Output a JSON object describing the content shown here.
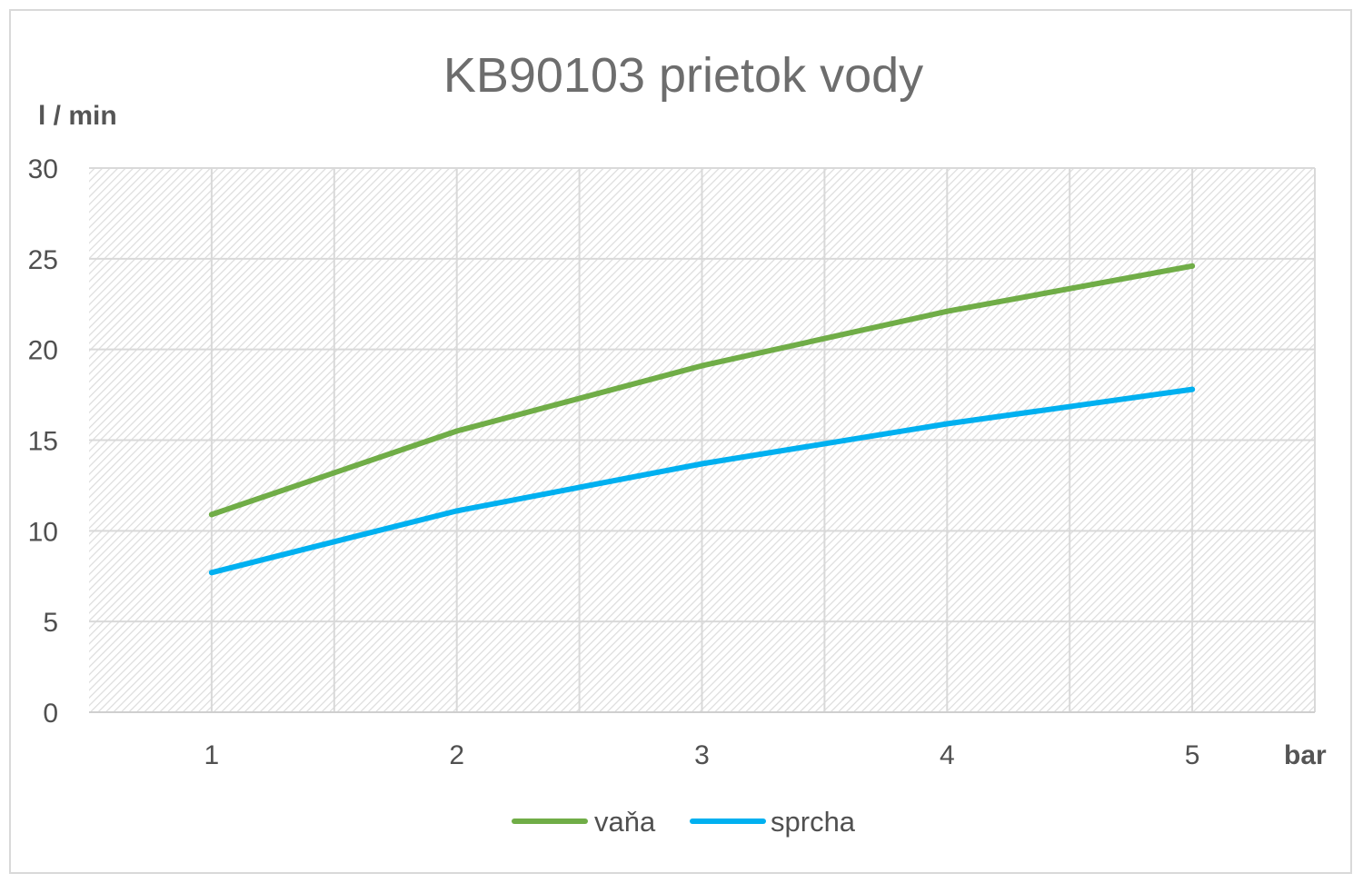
{
  "chart_data": {
    "type": "line",
    "title": "KB90103 prietok vody",
    "ylabel": "l / min",
    "xlabel": "bar",
    "categories": [
      "1",
      "2",
      "3",
      "4",
      "5"
    ],
    "ylim": [
      0,
      30
    ],
    "yticks": [
      "0",
      "5",
      "10",
      "15",
      "20",
      "25",
      "30"
    ],
    "grid": true,
    "legend_position": "bottom",
    "series": [
      {
        "name": "vaňa",
        "values": [
          10.9,
          15.5,
          19.1,
          22.1,
          24.6
        ],
        "color": "#70ad47"
      },
      {
        "name": "sprcha",
        "values": [
          7.7,
          11.1,
          13.7,
          15.9,
          17.8
        ],
        "color": "#00b0f0"
      }
    ],
    "colors": {
      "plot_background": "#f2f2f2",
      "hatch": "#dedede",
      "gridline": "#d9d9d9",
      "frame": "#d9d9d9"
    }
  }
}
